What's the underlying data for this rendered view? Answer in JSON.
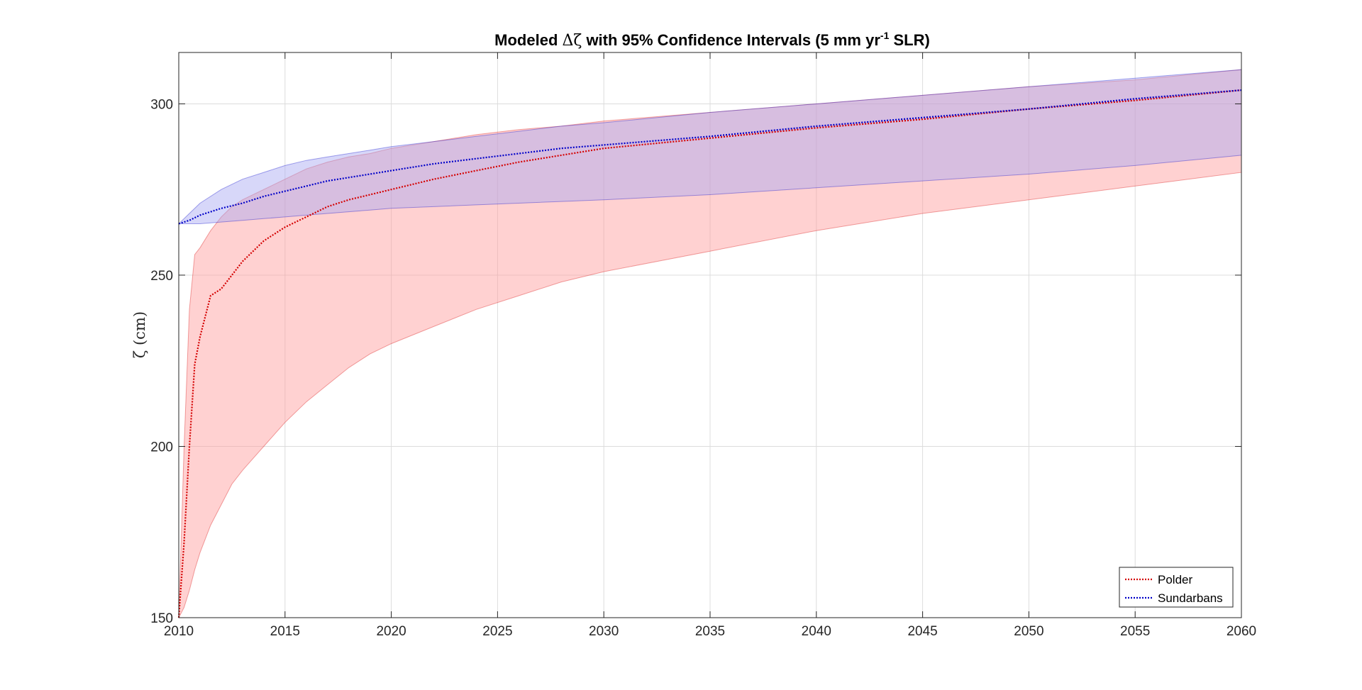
{
  "chart_data": {
    "type": "line",
    "title": "Modeled Δζ with 95% Confidence Intervals (5 mm yr-1 SLR)",
    "title_parts": {
      "prefix": "Modeled ",
      "delta_zeta": "Δζ",
      "middle": " with 95% Confidence Intervals (5 mm yr",
      "superscript": "-1",
      "suffix": " SLR)"
    },
    "xlabel": "",
    "ylabel": "ζ (cm)",
    "xlim": [
      2010,
      2060
    ],
    "ylim": [
      150,
      315
    ],
    "xticks": [
      2010,
      2015,
      2020,
      2025,
      2030,
      2035,
      2040,
      2045,
      2050,
      2055,
      2060
    ],
    "yticks": [
      150,
      200,
      250,
      300
    ],
    "grid": true,
    "legend_position": "bottom-right",
    "series": [
      {
        "name": "Polder",
        "color": "#d40000",
        "band_color": "#ff9a9a",
        "line_style": "dotted",
        "x": [
          2010,
          2010.25,
          2010.5,
          2010.75,
          2011,
          2011.5,
          2012,
          2012.5,
          2013,
          2014,
          2015,
          2016,
          2017,
          2018,
          2019,
          2020,
          2022,
          2024,
          2026,
          2028,
          2030,
          2035,
          2040,
          2045,
          2050,
          2055,
          2060
        ],
        "y": [
          150,
          172,
          200,
          224,
          232,
          244,
          246,
          250,
          254,
          260,
          264,
          267,
          270,
          272,
          273.5,
          275,
          278,
          280.5,
          283,
          285,
          287,
          290,
          293,
          295.5,
          298.5,
          301,
          304
        ],
        "ci_lower": [
          150,
          153,
          158,
          164,
          169,
          177,
          183,
          189,
          193,
          200,
          207,
          213,
          218,
          223,
          227,
          230,
          235,
          240,
          244,
          248,
          251,
          257,
          263,
          268,
          272,
          276,
          280
        ],
        "ci_upper": [
          150,
          200,
          240,
          256,
          258,
          263,
          267,
          270,
          272,
          275,
          278,
          281,
          283,
          284.5,
          285.5,
          287,
          289,
          291,
          292.5,
          293.5,
          295,
          297.5,
          300,
          302.5,
          305,
          307,
          310
        ]
      },
      {
        "name": "Sundarbans",
        "color": "#0000c8",
        "band_color": "#a6a6f2",
        "line_style": "dotted",
        "x": [
          2010,
          2010.5,
          2011,
          2012,
          2013,
          2014,
          2015,
          2016,
          2017,
          2018,
          2019,
          2020,
          2022,
          2024,
          2026,
          2028,
          2030,
          2035,
          2040,
          2045,
          2050,
          2055,
          2060
        ],
        "y": [
          265,
          266,
          267.5,
          269.5,
          271,
          273,
          274.5,
          276,
          277.5,
          278.5,
          279.5,
          280.5,
          282.5,
          284,
          285.5,
          287,
          288,
          290.5,
          293.5,
          296,
          298.5,
          301.5,
          304
        ],
        "ci_lower": [
          265,
          265,
          265,
          265.5,
          266,
          266.5,
          267,
          267.5,
          268,
          268.5,
          269,
          269.5,
          270,
          270.5,
          271,
          271.5,
          272,
          273.5,
          275.5,
          277.5,
          279.5,
          282,
          285
        ],
        "ci_upper": [
          265,
          268,
          271,
          275,
          278,
          280,
          282,
          283.5,
          284.5,
          285.5,
          286.5,
          287.5,
          289,
          290.5,
          292,
          293.5,
          294.5,
          297.5,
          300,
          302.5,
          305,
          307.5,
          310
        ]
      }
    ]
  }
}
